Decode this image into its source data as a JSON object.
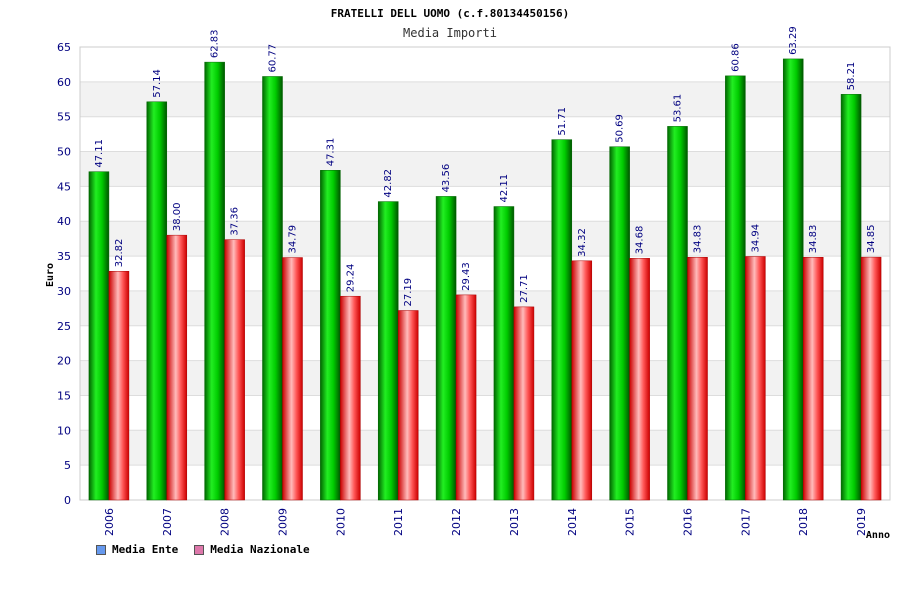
{
  "chart_data": {
    "type": "bar",
    "title": "FRATELLI DELL UOMO (c.f.80134450156)",
    "subtitle": "Media Importi",
    "xlabel": "Anno",
    "ylabel": "Euro",
    "ylim": [
      0,
      65
    ],
    "yticks": [
      "0",
      "5",
      "10",
      "15",
      "20",
      "25",
      "30",
      "35",
      "40",
      "45",
      "50",
      "55",
      "60",
      "65"
    ],
    "grid": true,
    "legend_position": "bottom-left",
    "categories": [
      "2006",
      "2007",
      "2008",
      "2009",
      "2010",
      "2011",
      "2012",
      "2013",
      "2014",
      "2015",
      "2016",
      "2017",
      "2018",
      "2019"
    ],
    "series": [
      {
        "name": "Media Ente",
        "color": "#00bb00",
        "legend_color": "#6699ee",
        "values": [
          47.11,
          57.14,
          62.83,
          60.77,
          47.31,
          42.82,
          43.56,
          42.11,
          51.71,
          50.69,
          53.61,
          60.86,
          63.29,
          58.21
        ],
        "labels": [
          "47.11",
          "57.14",
          "62.83",
          "60.77",
          "47.31",
          "42.82",
          "43.56",
          "42.11",
          "51.71",
          "50.69",
          "53.61",
          "60.86",
          "63.29",
          "58.21"
        ]
      },
      {
        "name": "Media Nazionale",
        "color": "#ee2222",
        "legend_color": "#dd77aa",
        "values": [
          32.82,
          38.0,
          37.36,
          34.79,
          29.24,
          27.19,
          29.43,
          27.71,
          34.32,
          34.68,
          34.83,
          34.94,
          34.83,
          34.85
        ],
        "labels": [
          "32.82",
          "38.00",
          "37.36",
          "34.79",
          "29.24",
          "27.19",
          "29.43",
          "27.71",
          "34.32",
          "34.68",
          "34.83",
          "34.94",
          "34.83",
          "34.85"
        ]
      }
    ]
  }
}
